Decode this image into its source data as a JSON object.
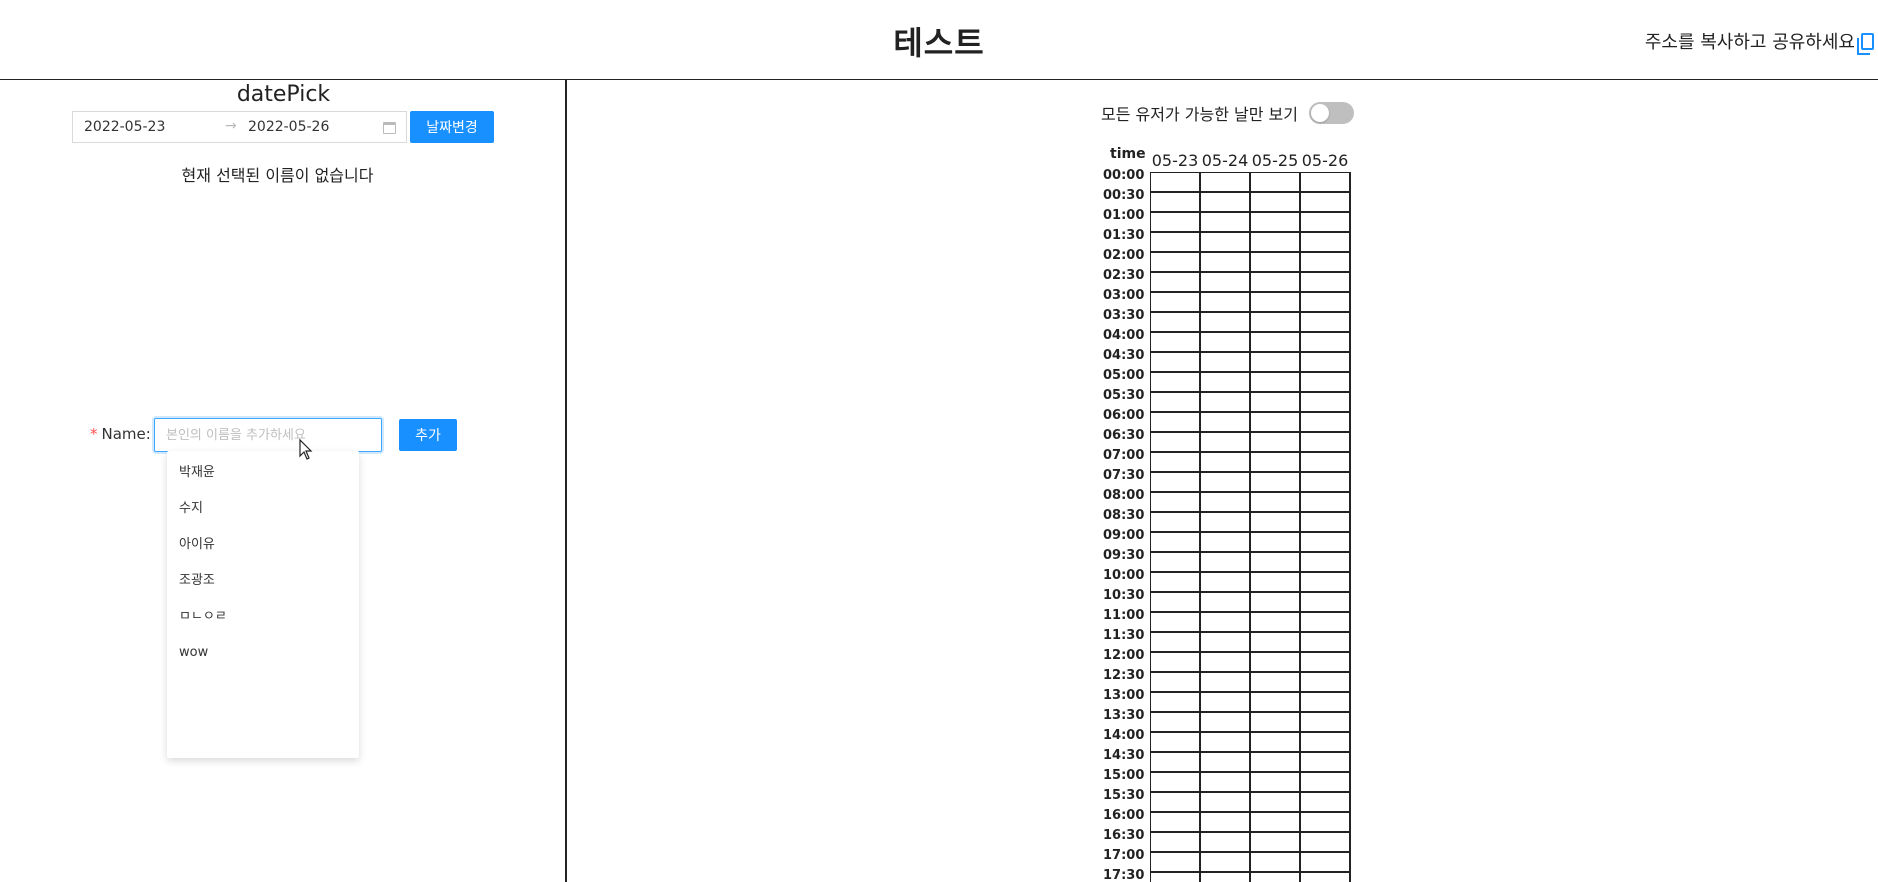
{
  "header": {
    "title": "테스트",
    "share_text": "주소를 복사하고 공유하세요",
    "copy_icon": "copy-icon"
  },
  "left": {
    "picker_title": "datePick",
    "date_range": {
      "start": "2022-05-23",
      "end": "2022-05-26",
      "arrow": "→",
      "calendar_icon": "calendar-icon"
    },
    "change_date_button": "날짜변경",
    "no_selection_text": "현재 선택된 이름이 없습니다",
    "name_form": {
      "required_mark": "*",
      "label": "Name",
      "colon": ":",
      "placeholder": "본인의 이름을 추가하세요",
      "value": "",
      "add_button": "추가"
    },
    "suggestions": [
      "박재윤",
      "수지",
      "아이유",
      "조광조",
      "ㅁㄴㅇㄹ",
      "wow"
    ]
  },
  "right": {
    "toggle_label": "모든 유저가 가능한 날만 보기",
    "toggle_on": false,
    "schedule": {
      "time_header": "time",
      "days": [
        "05-23",
        "05-24",
        "05-25",
        "05-26"
      ],
      "times": [
        "00:00",
        "00:30",
        "01:00",
        "01:30",
        "02:00",
        "02:30",
        "03:00",
        "03:30",
        "04:00",
        "04:30",
        "05:00",
        "05:30",
        "06:00",
        "06:30",
        "07:00",
        "07:30",
        "08:00",
        "08:30",
        "09:00",
        "09:30",
        "10:00",
        "10:30",
        "11:00",
        "11:30",
        "12:00",
        "12:30",
        "13:00",
        "13:30",
        "14:00",
        "14:30",
        "15:00",
        "15:30",
        "16:00",
        "16:30",
        "17:00",
        "17:30"
      ]
    }
  },
  "colors": {
    "primary": "#1890ff",
    "border": "#222222",
    "required": "#ff4d4f",
    "toggle_off": "#bfbfbf"
  }
}
